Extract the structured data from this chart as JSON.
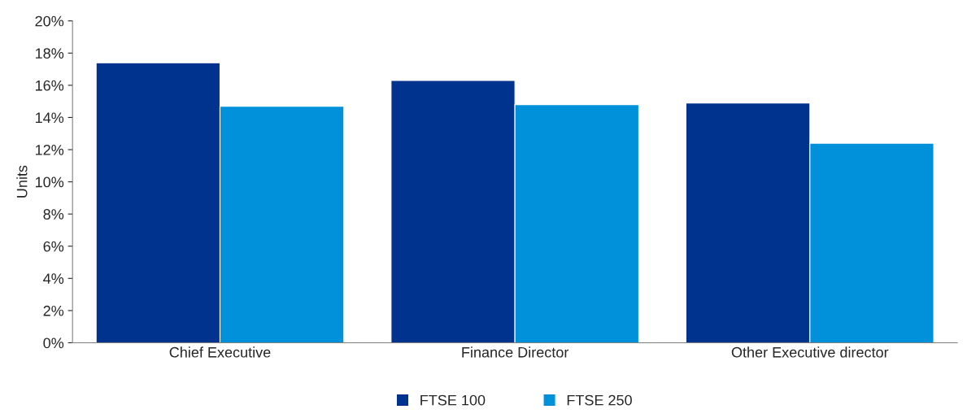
{
  "chart_data": {
    "type": "bar",
    "ylabel": "Units",
    "categories": [
      "Chief Executive",
      "Finance Director",
      "Other Executive director"
    ],
    "series": [
      {
        "name": "FTSE 100",
        "color": "#00338d",
        "values": [
          17.4,
          16.3,
          14.9
        ]
      },
      {
        "name": "FTSE 250",
        "color": "#0091da",
        "values": [
          14.7,
          14.8,
          12.4
        ]
      }
    ],
    "ylim": [
      0,
      20
    ],
    "yticks": [
      {
        "value": 0,
        "label": "0%"
      },
      {
        "value": 2,
        "label": "2%"
      },
      {
        "value": 4,
        "label": "4%"
      },
      {
        "value": 6,
        "label": "6%"
      },
      {
        "value": 8,
        "label": "8%"
      },
      {
        "value": 10,
        "label": "10%"
      },
      {
        "value": 12,
        "label": "12%"
      },
      {
        "value": 14,
        "label": "14%"
      },
      {
        "value": 16,
        "label": "16%"
      },
      {
        "value": 18,
        "label": "18%"
      },
      {
        "value": 20,
        "label": "20%"
      }
    ],
    "grid": false,
    "legend": "bottom"
  }
}
